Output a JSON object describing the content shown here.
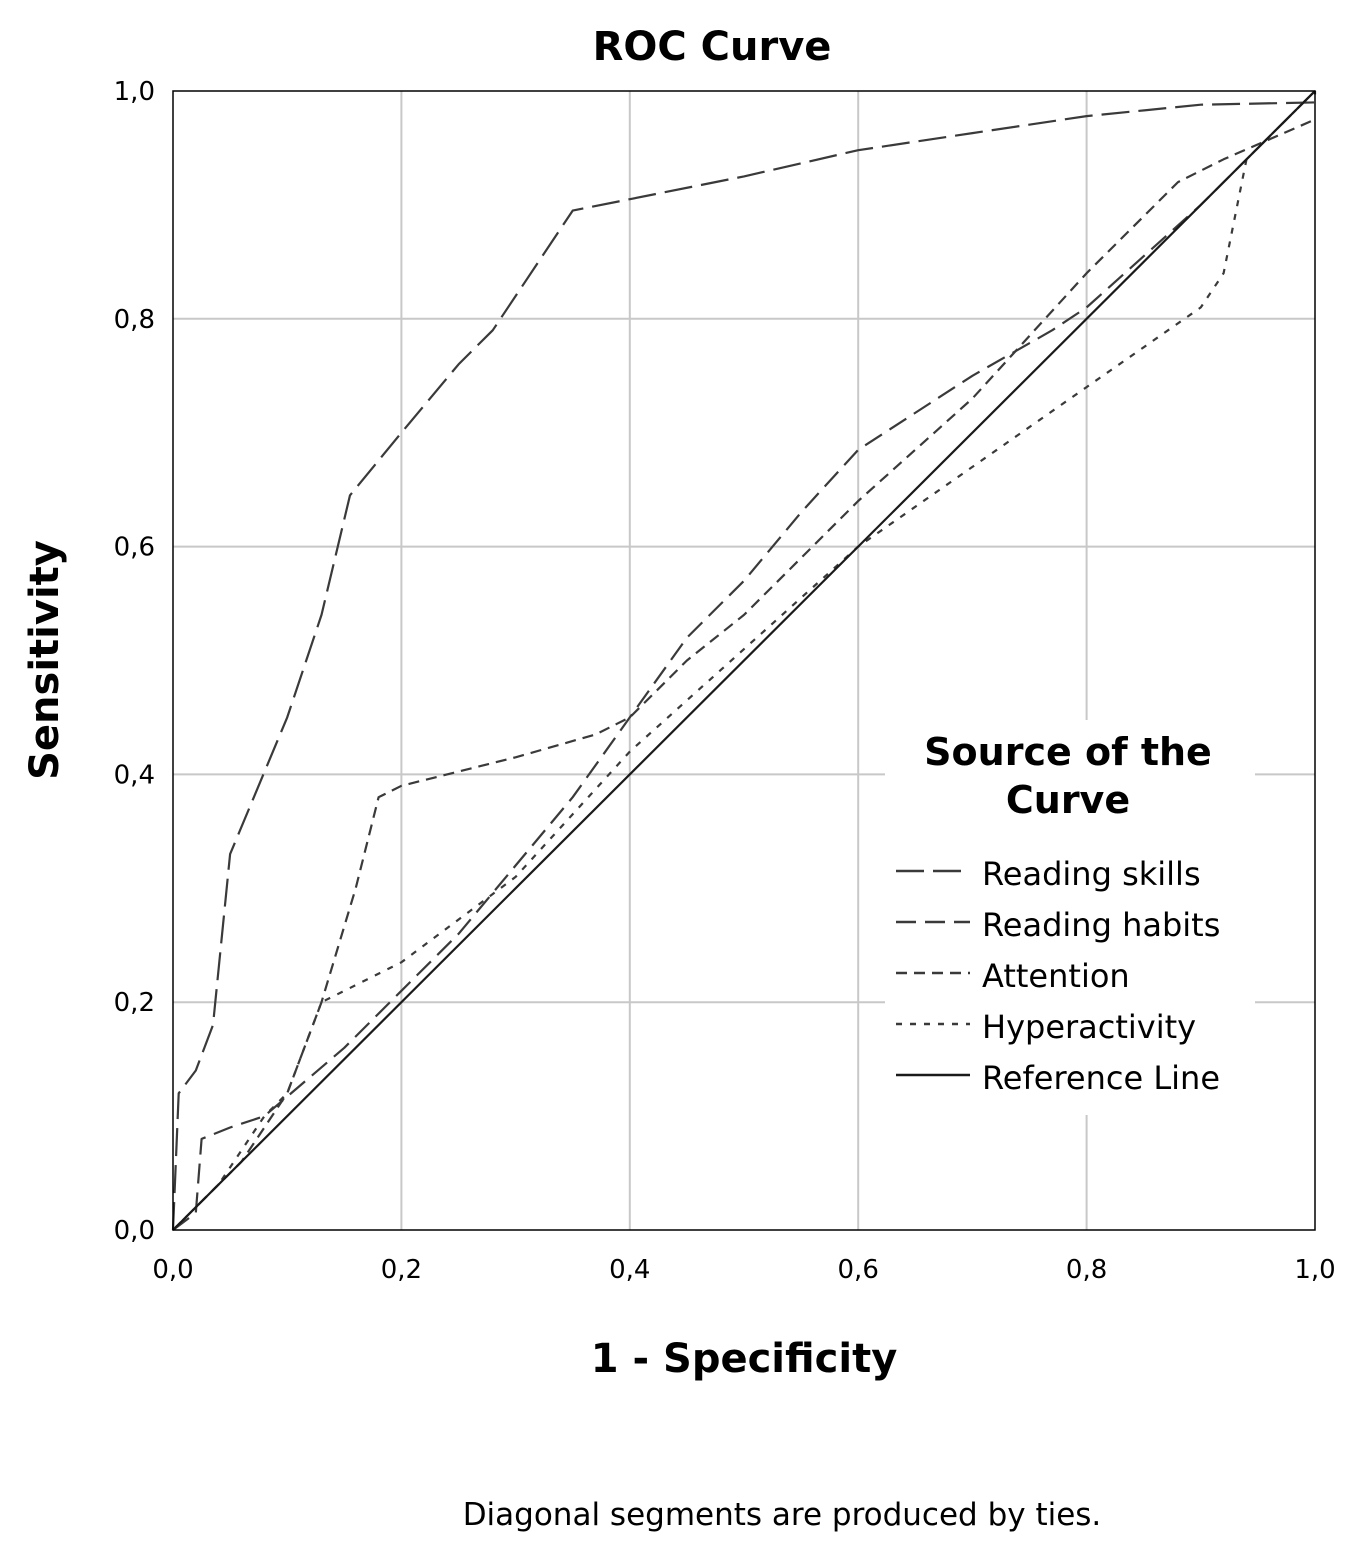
{
  "chart_data": {
    "type": "line",
    "title": "ROC Curve",
    "xlabel": "1 - Specificity",
    "ylabel": "Sensitivity",
    "xlim": [
      0,
      1
    ],
    "ylim": [
      0,
      1
    ],
    "x_ticks": [
      "0,0",
      "0,2",
      "0,4",
      "0,6",
      "0,8",
      "1,0"
    ],
    "y_ticks": [
      "0,0",
      "0,2",
      "0,4",
      "0,6",
      "0,8",
      "1,0"
    ],
    "grid": true,
    "legend": {
      "title": "Source of the Curve",
      "position": "lower-right",
      "entries": [
        "Reading skills",
        "Reading habits",
        "Attention",
        "Hyperactivity",
        "Reference Line"
      ]
    },
    "footnote": "Diagonal segments are produced by ties.",
    "series": [
      {
        "name": "Reading skills",
        "dash": "28 9",
        "color": "#3a3a3a",
        "points": [
          [
            0,
            0
          ],
          [
            0.005,
            0.12
          ],
          [
            0.02,
            0.14
          ],
          [
            0.035,
            0.18
          ],
          [
            0.05,
            0.33
          ],
          [
            0.1,
            0.45
          ],
          [
            0.13,
            0.54
          ],
          [
            0.155,
            0.645
          ],
          [
            0.2,
            0.7
          ],
          [
            0.25,
            0.76
          ],
          [
            0.28,
            0.79
          ],
          [
            0.35,
            0.895
          ],
          [
            0.4,
            0.905
          ],
          [
            0.5,
            0.925
          ],
          [
            0.6,
            0.948
          ],
          [
            0.7,
            0.963
          ],
          [
            0.8,
            0.978
          ],
          [
            0.9,
            0.988
          ],
          [
            1,
            0.99
          ],
          [
            1,
            1
          ]
        ]
      },
      {
        "name": "Reading habits",
        "dash": "20 9",
        "color": "#3a3a3a",
        "points": [
          [
            0,
            0
          ],
          [
            0.02,
            0.015
          ],
          [
            0.025,
            0.08
          ],
          [
            0.05,
            0.09
          ],
          [
            0.08,
            0.1
          ],
          [
            0.15,
            0.16
          ],
          [
            0.2,
            0.21
          ],
          [
            0.25,
            0.26
          ],
          [
            0.3,
            0.32
          ],
          [
            0.35,
            0.38
          ],
          [
            0.4,
            0.45
          ],
          [
            0.45,
            0.52
          ],
          [
            0.5,
            0.57
          ],
          [
            0.55,
            0.63
          ],
          [
            0.6,
            0.685
          ],
          [
            0.7,
            0.75
          ],
          [
            0.77,
            0.79
          ],
          [
            0.8,
            0.81
          ],
          [
            0.9,
            0.9
          ],
          [
            1,
            1
          ]
        ]
      },
      {
        "name": "Attention",
        "dash": "11 7",
        "color": "#3a3a3a",
        "points": [
          [
            0,
            0
          ],
          [
            0.02,
            0.02
          ],
          [
            0.06,
            0.06
          ],
          [
            0.1,
            0.12
          ],
          [
            0.13,
            0.2
          ],
          [
            0.16,
            0.3
          ],
          [
            0.18,
            0.38
          ],
          [
            0.2,
            0.39
          ],
          [
            0.3,
            0.415
          ],
          [
            0.37,
            0.435
          ],
          [
            0.4,
            0.45
          ],
          [
            0.45,
            0.5
          ],
          [
            0.5,
            0.54
          ],
          [
            0.6,
            0.64
          ],
          [
            0.7,
            0.73
          ],
          [
            0.8,
            0.84
          ],
          [
            0.88,
            0.92
          ],
          [
            0.92,
            0.94
          ],
          [
            1,
            0.975
          ]
        ]
      },
      {
        "name": "Hyperactivity",
        "dash": "6 8",
        "color": "#3a3a3a",
        "points": [
          [
            0,
            0
          ],
          [
            0.04,
            0.04
          ],
          [
            0.08,
            0.1
          ],
          [
            0.1,
            0.12
          ],
          [
            0.13,
            0.2
          ],
          [
            0.2,
            0.235
          ],
          [
            0.3,
            0.31
          ],
          [
            0.4,
            0.42
          ],
          [
            0.5,
            0.51
          ],
          [
            0.6,
            0.6
          ],
          [
            0.7,
            0.67
          ],
          [
            0.8,
            0.74
          ],
          [
            0.9,
            0.81
          ],
          [
            0.92,
            0.84
          ],
          [
            0.94,
            0.94
          ],
          [
            1,
            1
          ]
        ]
      },
      {
        "name": "Reference Line",
        "dash": "",
        "color": "#1a1a1a",
        "points": [
          [
            0,
            0
          ],
          [
            1,
            1
          ]
        ]
      }
    ]
  }
}
